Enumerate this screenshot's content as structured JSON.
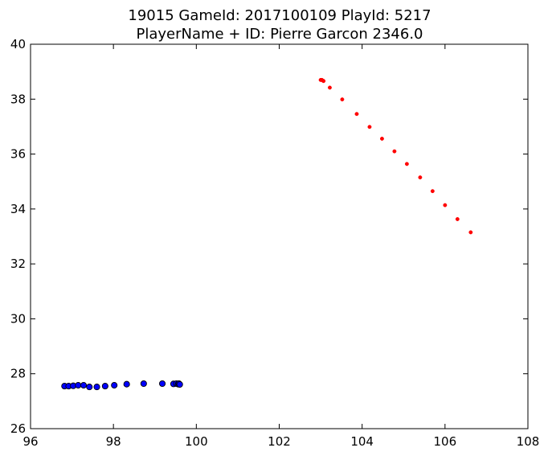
{
  "chart_data": {
    "type": "scatter",
    "title": "19015 GameId: 2017100109 PlayId: 5217",
    "subtitle": "PlayerName + ID: Pierre Garcon 2346.0",
    "xlabel": "",
    "ylabel": "",
    "xlim": [
      96,
      108
    ],
    "ylim": [
      26,
      40
    ],
    "xticks": [
      "96",
      "98",
      "100",
      "102",
      "104",
      "106",
      "108"
    ],
    "yticks": [
      "26",
      "28",
      "30",
      "32",
      "34",
      "36",
      "38",
      "40"
    ],
    "grid": false,
    "legend": "none",
    "series": [
      {
        "color": "#0000ff",
        "marker": "large-circle-black-edge",
        "points": [
          [
            96.82,
            27.55
          ],
          [
            96.92,
            27.55
          ],
          [
            97.03,
            27.56
          ],
          [
            97.15,
            27.58
          ],
          [
            97.28,
            27.58
          ],
          [
            97.42,
            27.52
          ],
          [
            97.6,
            27.52
          ],
          [
            97.8,
            27.55
          ],
          [
            98.02,
            27.58
          ],
          [
            98.32,
            27.62
          ],
          [
            98.73,
            27.64
          ],
          [
            99.18,
            27.64
          ],
          [
            99.45,
            27.63
          ],
          [
            99.52,
            27.64
          ],
          [
            99.56,
            27.62
          ],
          [
            99.58,
            27.64
          ],
          [
            99.6,
            27.61
          ]
        ]
      },
      {
        "color": "#ff0000",
        "marker": "small-circle",
        "points": [
          [
            103.0,
            38.7
          ],
          [
            103.03,
            38.7
          ],
          [
            103.06,
            38.67
          ],
          [
            103.07,
            38.66
          ],
          [
            103.22,
            38.42
          ],
          [
            103.52,
            37.99
          ],
          [
            103.87,
            37.46
          ],
          [
            104.18,
            36.99
          ],
          [
            104.48,
            36.56
          ],
          [
            104.78,
            36.1
          ],
          [
            105.08,
            35.64
          ],
          [
            105.4,
            35.15
          ],
          [
            105.7,
            34.65
          ],
          [
            106.0,
            34.14
          ],
          [
            106.3,
            33.63
          ],
          [
            106.62,
            33.15
          ]
        ]
      }
    ]
  }
}
